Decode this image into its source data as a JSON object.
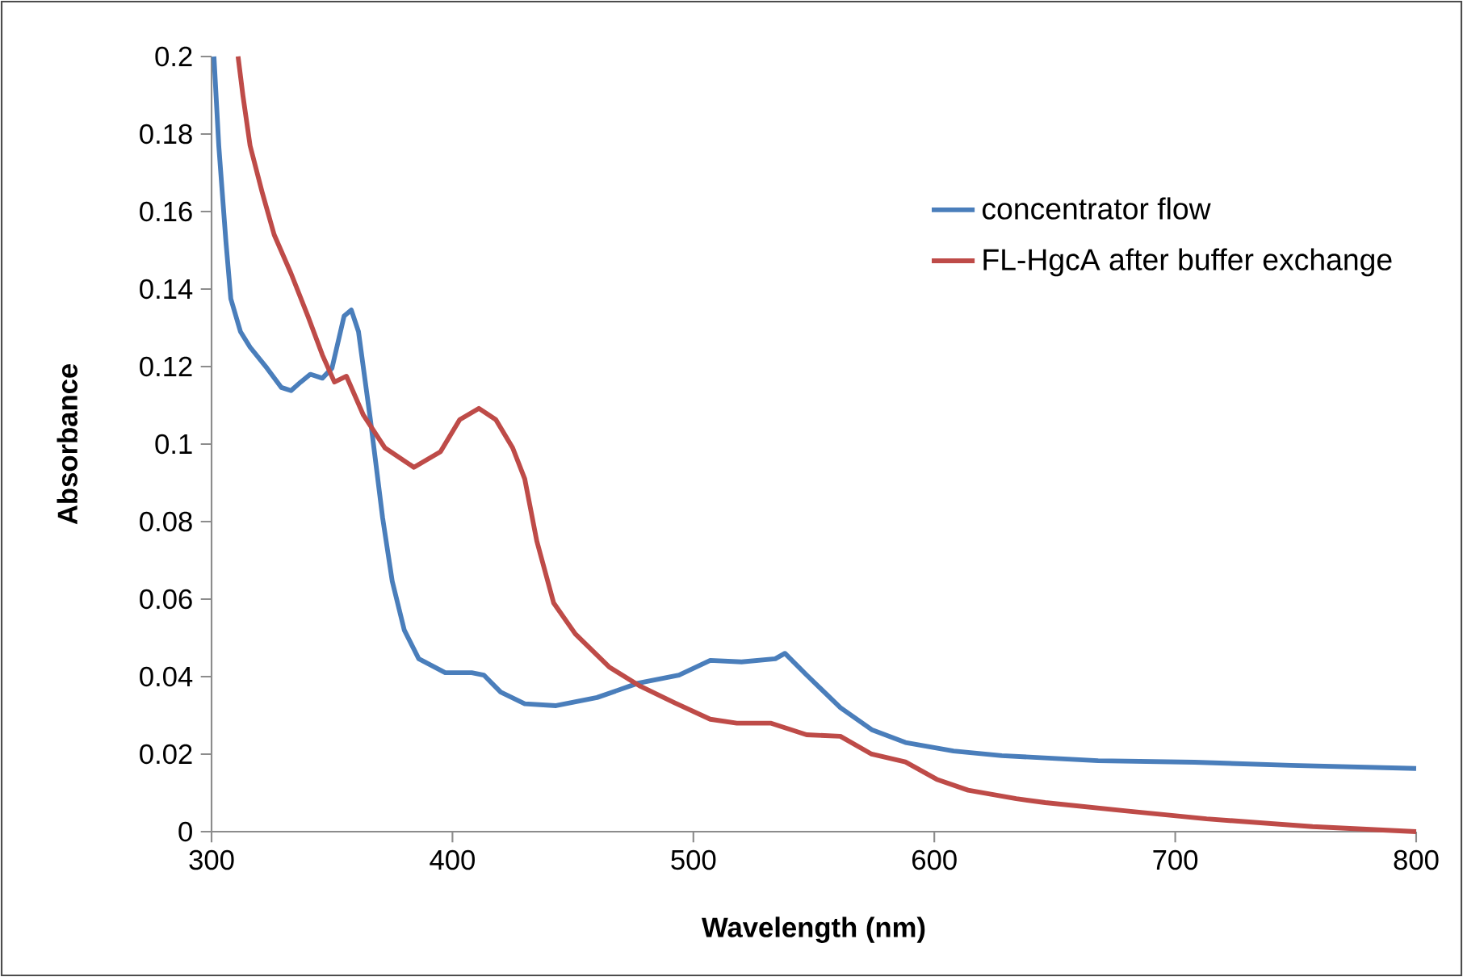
{
  "chart_data": {
    "type": "line",
    "xlabel": "Wavelength (nm)",
    "ylabel": "Absorbance",
    "xlim": [
      300,
      800
    ],
    "xticks": [
      300,
      400,
      500,
      600,
      700,
      800
    ],
    "ylim": [
      0,
      0.2
    ],
    "yticks": [
      0,
      0.02,
      0.04,
      0.06,
      0.08,
      0.1,
      0.12,
      0.14,
      0.16,
      0.18,
      0.2
    ],
    "grid": false,
    "legend": "top right",
    "marker": "none",
    "line_style": "solid",
    "series": [
      {
        "name": "concentrator flow",
        "color": "#4a7ebb",
        "x": [
          301,
          303,
          306,
          308,
          312,
          316,
          323,
          329,
          333,
          337,
          341,
          346,
          350,
          355,
          358,
          361,
          366,
          371,
          375,
          380,
          386,
          397,
          408,
          413,
          420,
          430,
          443,
          460,
          477,
          494,
          507,
          520,
          534,
          538,
          547,
          561,
          574,
          588,
          608,
          628,
          668,
          708,
          748,
          800
        ],
        "values": [
          0.2,
          0.177,
          0.152,
          0.1375,
          0.129,
          0.125,
          0.1196,
          0.1146,
          0.1138,
          0.116,
          0.118,
          0.117,
          0.1196,
          0.133,
          0.1346,
          0.129,
          0.106,
          0.081,
          0.0646,
          0.052,
          0.0446,
          0.041,
          0.041,
          0.0404,
          0.036,
          0.033,
          0.0325,
          0.0346,
          0.0383,
          0.0404,
          0.0442,
          0.0438,
          0.0446,
          0.046,
          0.0404,
          0.032,
          0.0263,
          0.023,
          0.0208,
          0.0196,
          0.0183,
          0.0179,
          0.0171,
          0.0163
        ]
      },
      {
        "name": "FL-HgcA after buffer exchange",
        "color": "#be4b48",
        "x": [
          311,
          313,
          316,
          321,
          326,
          333,
          340,
          346,
          351,
          356,
          363,
          372,
          384,
          395,
          403,
          411,
          418,
          425,
          430,
          435,
          442,
          451,
          465,
          478,
          492,
          507,
          518,
          532,
          547,
          561,
          574,
          588,
          601,
          614,
          634,
          646,
          679,
          713,
          757,
          800
        ],
        "values": [
          0.2,
          0.19,
          0.177,
          0.165,
          0.154,
          0.144,
          0.133,
          0.123,
          0.116,
          0.1175,
          0.1075,
          0.099,
          0.094,
          0.098,
          0.1063,
          0.1092,
          0.1063,
          0.099,
          0.091,
          0.075,
          0.059,
          0.051,
          0.0425,
          0.0375,
          0.0333,
          0.029,
          0.028,
          0.028,
          0.025,
          0.0246,
          0.02,
          0.018,
          0.0135,
          0.0107,
          0.0085,
          0.0075,
          0.0054,
          0.0033,
          0.0013,
          0.0
        ]
      }
    ]
  }
}
